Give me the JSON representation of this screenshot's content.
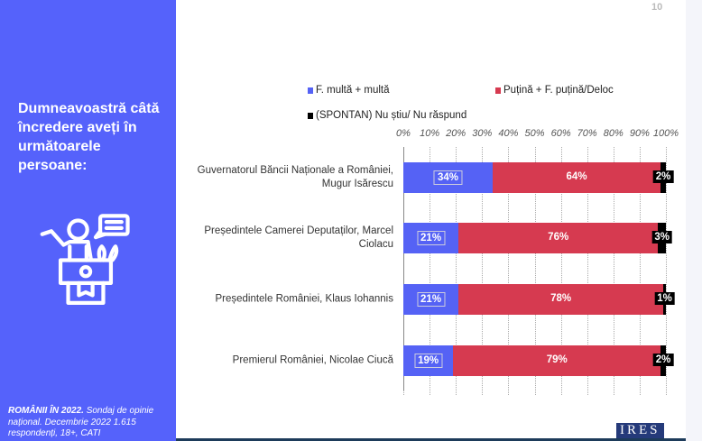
{
  "page_number": "10",
  "question": "Dumneavoastră câtă încredere aveți în următoarele persoane:",
  "footer": {
    "bold": "ROMÂNII ÎN 2022.",
    "text": " Sondaj de opinie național. Decembrie 2022 1.615 respondenți, 18+, CATI"
  },
  "logo": "IRES",
  "chart_data": {
    "type": "bar",
    "orientation": "horizontal",
    "stacked": true,
    "xlim": [
      0,
      100
    ],
    "ticks": [
      "0%",
      "10%",
      "20%",
      "30%",
      "40%",
      "50%",
      "60%",
      "70%",
      "80%",
      "90%",
      "100%"
    ],
    "grid": true,
    "legend_placement": "top",
    "categories": [
      "Guvernatorul Băncii Naționale a României, Mugur Isărescu",
      "Președintele Camerei Deputaților, Marcel Ciolacu",
      "Președintele României, Klaus Iohannis",
      "Premierul României, Nicolae Ciucă"
    ],
    "series": [
      {
        "name": "F. multă + multă",
        "color": "#5562f5",
        "values": [
          34,
          21,
          21,
          19
        ]
      },
      {
        "name": "Puțină + F. puțină/Deloc",
        "color": "#d63a50",
        "values": [
          64,
          76,
          78,
          79
        ]
      },
      {
        "name": "(SPONTAN) Nu știu/ Nu răspund",
        "color": "#000000",
        "values": [
          2,
          3,
          1,
          2
        ]
      }
    ]
  }
}
